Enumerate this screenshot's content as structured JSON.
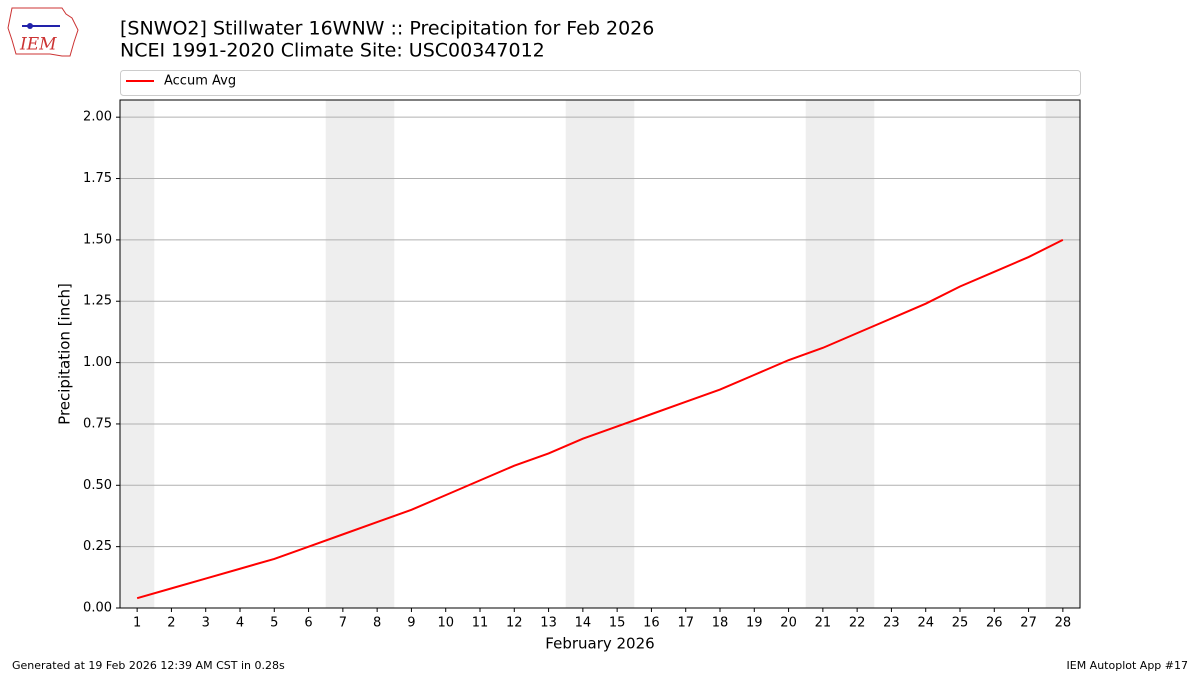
{
  "chart_data": {
    "type": "line",
    "title": "[SNWO2] Stillwater 16WNW :: Precipitation for Feb 2026",
    "subtitle": "NCEI 1991-2020 Climate Site: USC00347012",
    "logo_text": "IEM",
    "xlabel": "February 2026",
    "ylabel": "Precipitation [inch]",
    "footer_left": "Generated at 19 Feb 2026 12:39 AM CST in 0.28s",
    "footer_right": "IEM Autoplot App #17",
    "x": [
      1,
      2,
      3,
      4,
      5,
      6,
      7,
      8,
      9,
      10,
      11,
      12,
      13,
      14,
      15,
      16,
      17,
      18,
      19,
      20,
      21,
      22,
      23,
      24,
      25,
      26,
      27,
      28
    ],
    "series": [
      {
        "name": "Accum Avg",
        "color": "#ff0000",
        "values": [
          0.04,
          0.08,
          0.12,
          0.16,
          0.2,
          0.25,
          0.3,
          0.35,
          0.4,
          0.46,
          0.52,
          0.58,
          0.63,
          0.69,
          0.74,
          0.79,
          0.84,
          0.89,
          0.95,
          1.01,
          1.06,
          1.12,
          1.18,
          1.24,
          1.31,
          1.37,
          1.43,
          1.5
        ]
      }
    ],
    "weekend_days": [
      1,
      7,
      8,
      14,
      15,
      21,
      22,
      28
    ],
    "weekend_color": "#eeeeee",
    "xlim": [
      0.5,
      28.5
    ],
    "ylim": [
      0,
      2.07
    ],
    "xticks": [
      1,
      2,
      3,
      4,
      5,
      6,
      7,
      8,
      9,
      10,
      11,
      12,
      13,
      14,
      15,
      16,
      17,
      18,
      19,
      20,
      21,
      22,
      23,
      24,
      25,
      26,
      27,
      28
    ],
    "yticks": [
      {
        "value": 0,
        "label": "0.00"
      },
      {
        "value": 0.25,
        "label": "0.25"
      },
      {
        "value": 0.5,
        "label": "0.50"
      },
      {
        "value": 0.75,
        "label": "0.75"
      },
      {
        "value": 1,
        "label": "1.00"
      },
      {
        "value": 1.25,
        "label": "1.25"
      },
      {
        "value": 1.5,
        "label": "1.50"
      },
      {
        "value": 1.75,
        "label": "1.75"
      },
      {
        "value": 2,
        "label": "2.00"
      }
    ],
    "grid": true,
    "legend": "top"
  }
}
